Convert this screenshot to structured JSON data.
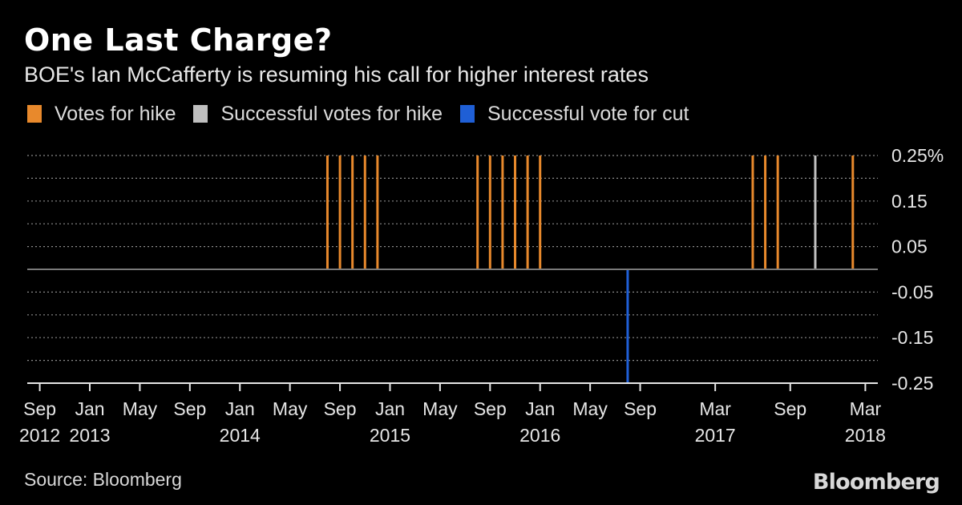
{
  "header": {
    "title": "One Last Charge?",
    "subtitle": "BOE's Ian McCafferty is resuming his call for higher interest rates"
  },
  "legend": {
    "items": [
      {
        "label": "Votes for hike",
        "color": "#e8892c"
      },
      {
        "label": "Successful votes for hike",
        "color": "#bfbfbf"
      },
      {
        "label": "Successful vote for cut",
        "color": "#1f5fd6"
      }
    ]
  },
  "footer": {
    "source": "Source: Bloomberg",
    "brand": "Bloomberg"
  },
  "chart_data": {
    "type": "bar",
    "title": "One Last Charge?",
    "subtitle": "BOE's Ian McCafferty is resuming his call for higher interest rates",
    "xlabel": "",
    "ylabel": "",
    "unit": "%",
    "ylim": [
      -0.25,
      0.25
    ],
    "xlim": [
      "2012-08",
      "2018-04"
    ],
    "y_ticks": [
      {
        "value": 0.25,
        "label": "0.25%"
      },
      {
        "value": 0.15,
        "label": "0.15"
      },
      {
        "value": 0.05,
        "label": "0.05"
      },
      {
        "value": -0.05,
        "label": "-0.05"
      },
      {
        "value": -0.15,
        "label": "-0.15"
      },
      {
        "value": -0.25,
        "label": "-0.25"
      }
    ],
    "x_ticks": [
      {
        "date": "2012-09",
        "month": "Sep",
        "year": "2012"
      },
      {
        "date": "2013-01",
        "month": "Jan",
        "year": "2013"
      },
      {
        "date": "2013-05",
        "month": "May",
        "year": ""
      },
      {
        "date": "2013-09",
        "month": "Sep",
        "year": ""
      },
      {
        "date": "2014-01",
        "month": "Jan",
        "year": "2014"
      },
      {
        "date": "2014-05",
        "month": "May",
        "year": ""
      },
      {
        "date": "2014-09",
        "month": "Sep",
        "year": ""
      },
      {
        "date": "2015-01",
        "month": "Jan",
        "year": "2015"
      },
      {
        "date": "2015-05",
        "month": "May",
        "year": ""
      },
      {
        "date": "2015-09",
        "month": "Sep",
        "year": ""
      },
      {
        "date": "2016-01",
        "month": "Jan",
        "year": "2016"
      },
      {
        "date": "2016-05",
        "month": "May",
        "year": ""
      },
      {
        "date": "2016-09",
        "month": "Sep",
        "year": ""
      },
      {
        "date": "2017-03",
        "month": "Mar",
        "year": "2017"
      },
      {
        "date": "2017-09",
        "month": "Sep",
        "year": ""
      },
      {
        "date": "2018-03",
        "month": "Mar",
        "year": "2018"
      }
    ],
    "grid": true,
    "series": [
      {
        "name": "Votes for hike",
        "color": "#e8892c",
        "points": [
          {
            "date": "2014-08",
            "value": 0.25
          },
          {
            "date": "2014-09",
            "value": 0.25
          },
          {
            "date": "2014-10",
            "value": 0.25
          },
          {
            "date": "2014-11",
            "value": 0.25
          },
          {
            "date": "2014-12",
            "value": 0.25
          },
          {
            "date": "2015-08",
            "value": 0.25
          },
          {
            "date": "2015-09",
            "value": 0.25
          },
          {
            "date": "2015-10",
            "value": 0.25
          },
          {
            "date": "2015-11",
            "value": 0.25
          },
          {
            "date": "2015-12",
            "value": 0.25
          },
          {
            "date": "2016-01",
            "value": 0.25
          },
          {
            "date": "2017-06",
            "value": 0.25
          },
          {
            "date": "2017-07",
            "value": 0.25
          },
          {
            "date": "2017-08",
            "value": 0.25
          },
          {
            "date": "2018-02",
            "value": 0.25
          }
        ]
      },
      {
        "name": "Successful votes for hike",
        "color": "#bfbfbf",
        "points": [
          {
            "date": "2017-11",
            "value": 0.25
          }
        ]
      },
      {
        "name": "Successful vote for cut",
        "color": "#1f5fd6",
        "points": [
          {
            "date": "2016-08",
            "value": -0.25
          }
        ]
      }
    ]
  }
}
